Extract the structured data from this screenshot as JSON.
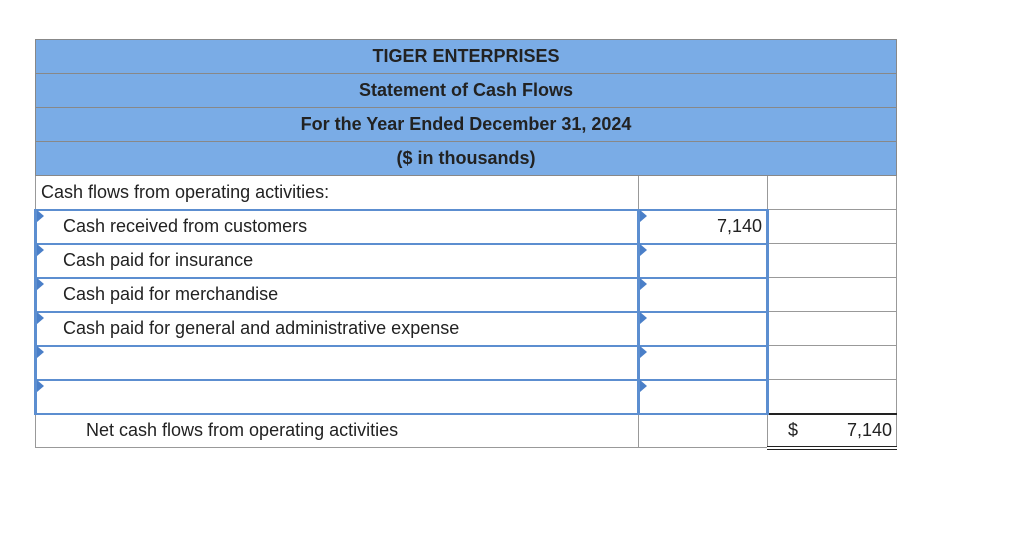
{
  "header": {
    "company": "TIGER ENTERPRISES",
    "statement": "Statement of Cash Flows",
    "period": "For the Year Ended December 31, 2024",
    "units": "($ in thousands)"
  },
  "section_label": "Cash flows from operating activities:",
  "rows": [
    {
      "label": "Cash received from customers",
      "amount": "7,140"
    },
    {
      "label": "Cash paid for insurance",
      "amount": ""
    },
    {
      "label": "Cash paid for merchandise",
      "amount": ""
    },
    {
      "label": "Cash paid for general and administrative expense",
      "amount": ""
    },
    {
      "label": "",
      "amount": ""
    },
    {
      "label": "",
      "amount": ""
    }
  ],
  "net": {
    "label": "Net cash flows from operating activities",
    "currency": "$",
    "amount": "7,140"
  },
  "colors": {
    "header_bg": "#7aace6",
    "input_border": "#5c8ed0"
  }
}
